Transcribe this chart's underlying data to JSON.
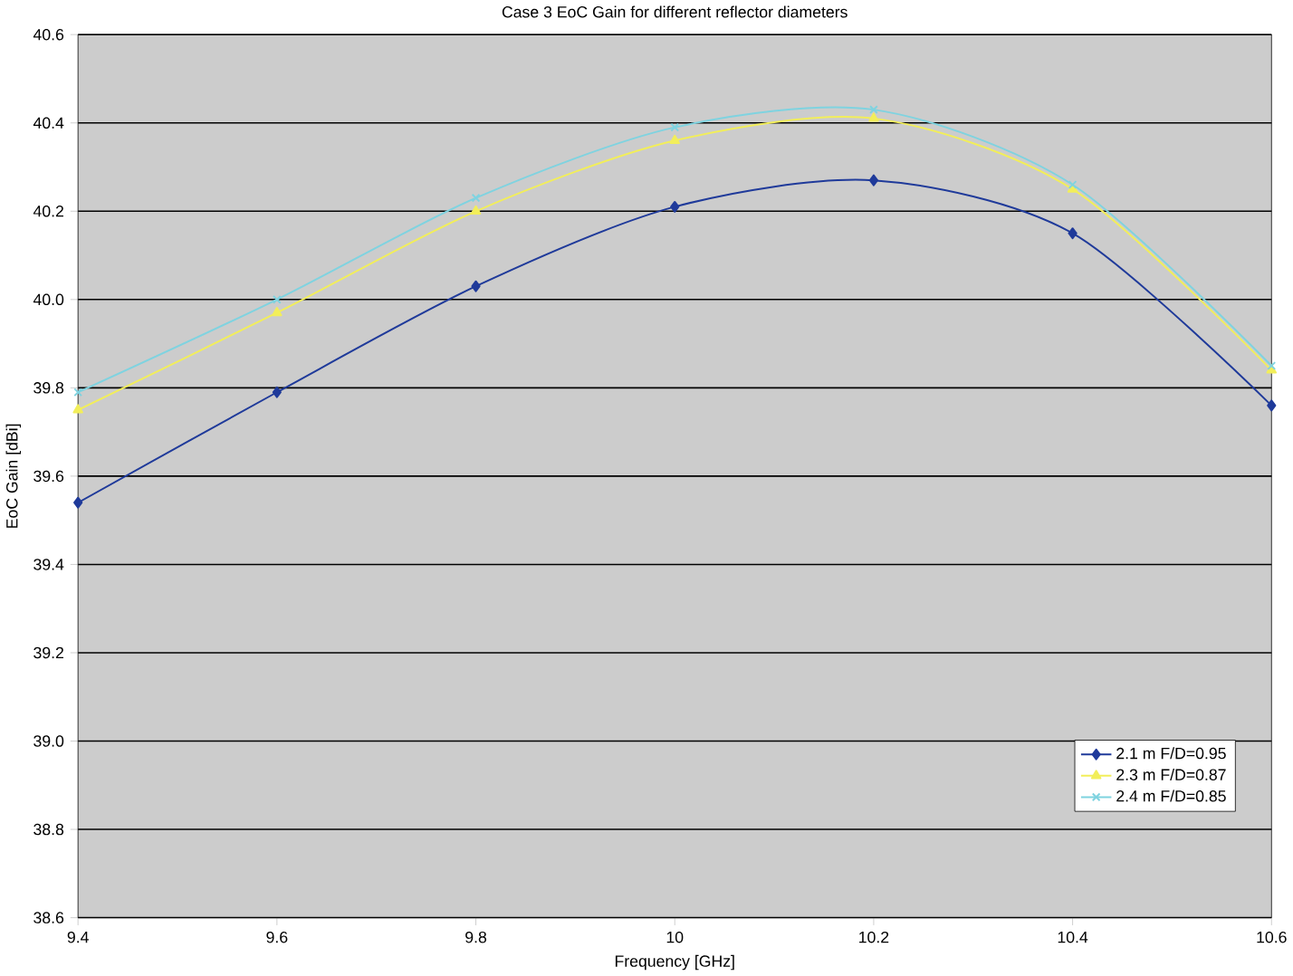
{
  "chart_data": {
    "type": "line",
    "title": "Case 3 EoC Gain for different reflector diameters",
    "xlabel": "Frequency  [GHz]",
    "ylabel": "EoC Gain  [dBi]",
    "x": [
      9.4,
      9.6,
      9.8,
      10.0,
      10.2,
      10.4,
      10.6
    ],
    "series": [
      {
        "name": "2.1 m F/D=0.95",
        "color": "#1f3a9a",
        "marker": "diamond",
        "values": [
          39.54,
          39.79,
          40.03,
          40.21,
          40.27,
          40.15,
          39.76
        ]
      },
      {
        "name": "2.3 m F/D=0.87",
        "color": "#f2ee5a",
        "marker": "triangle",
        "values": [
          39.75,
          39.97,
          40.2,
          40.36,
          40.41,
          40.25,
          39.84
        ]
      },
      {
        "name": "2.4 m F/D=0.85",
        "color": "#7fd3e0",
        "marker": "cross",
        "values": [
          39.79,
          40.0,
          40.23,
          40.39,
          40.43,
          40.26,
          39.85
        ]
      }
    ],
    "xlim": [
      9.4,
      10.6
    ],
    "xticks": [
      {
        "value": 9.4,
        "label": "9.4"
      },
      {
        "value": 9.6,
        "label": "9.6"
      },
      {
        "value": 9.8,
        "label": "9.8"
      },
      {
        "value": 10.0,
        "label": "10"
      },
      {
        "value": 10.2,
        "label": "10.2"
      },
      {
        "value": 10.4,
        "label": "10.4"
      },
      {
        "value": 10.6,
        "label": "10.6"
      }
    ],
    "ylim": [
      38.6,
      40.6
    ],
    "yticks": [
      {
        "value": 38.6,
        "label": "38.6"
      },
      {
        "value": 38.8,
        "label": "38.8"
      },
      {
        "value": 39.0,
        "label": "39.0"
      },
      {
        "value": 39.2,
        "label": "39.2"
      },
      {
        "value": 39.4,
        "label": "39.4"
      },
      {
        "value": 39.6,
        "label": "39.6"
      },
      {
        "value": 39.8,
        "label": "39.8"
      },
      {
        "value": 40.0,
        "label": "40.0"
      },
      {
        "value": 40.2,
        "label": "40.2"
      },
      {
        "value": 40.4,
        "label": "40.4"
      },
      {
        "value": 40.6,
        "label": "40.6"
      }
    ],
    "grid": "y",
    "legend": "bottom right",
    "line_style": "solid"
  }
}
